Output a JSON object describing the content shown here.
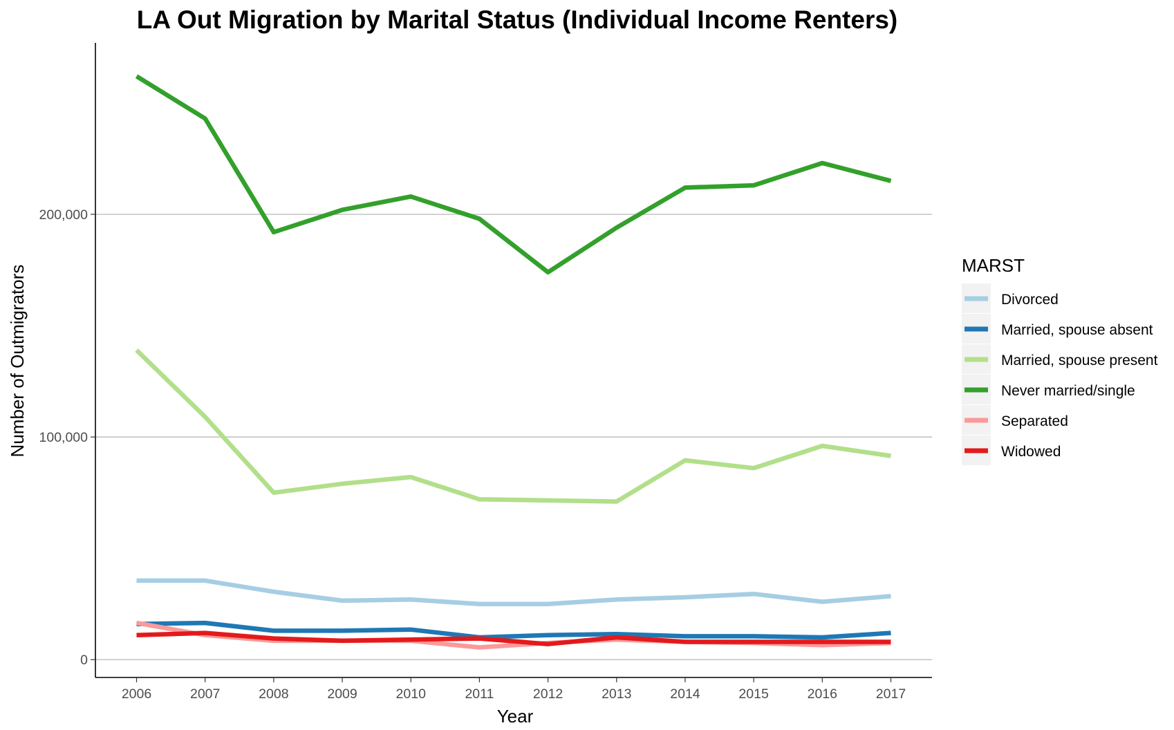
{
  "chart_data": {
    "type": "line",
    "title": "LA Out Migration by Marital Status (Individual Income Renters)",
    "xlabel": "Year",
    "ylabel": "Number of Outmigrators",
    "x": [
      2006,
      2007,
      2008,
      2009,
      2010,
      2011,
      2012,
      2013,
      2014,
      2015,
      2016,
      2017
    ],
    "x_tick_labels": [
      "2006",
      "2007",
      "2008",
      "2009",
      "2010",
      "2011",
      "2012",
      "2013",
      "2014",
      "2015",
      "2016",
      "2017"
    ],
    "ylim": [
      -8000,
      277000
    ],
    "y_ticks": [
      0,
      100000,
      200000
    ],
    "y_tick_labels": [
      "0",
      "100,000",
      "200,000"
    ],
    "grid": "horizontal major",
    "legend_title": "MARST",
    "legend_position": "right",
    "series": [
      {
        "name": "Divorced",
        "color": "#A6CEE3",
        "values": [
          35500,
          35500,
          30500,
          26500,
          27000,
          25000,
          25000,
          27000,
          28000,
          29500,
          26000,
          28500
        ]
      },
      {
        "name": "Married, spouse absent",
        "color": "#1F78B4",
        "values": [
          16000,
          16500,
          13000,
          13000,
          13500,
          10000,
          11000,
          11500,
          10500,
          10500,
          10000,
          12000
        ]
      },
      {
        "name": "Married, spouse present",
        "color": "#B2DF8A",
        "values": [
          139000,
          109000,
          75000,
          79000,
          82000,
          72000,
          71500,
          71000,
          89500,
          86000,
          96000,
          91500
        ]
      },
      {
        "name": "Never married/single",
        "color": "#33A02C",
        "values": [
          262000,
          243000,
          192000,
          202000,
          208000,
          198000,
          174000,
          194000,
          212000,
          213000,
          223000,
          215000
        ]
      },
      {
        "name": "Separated",
        "color": "#FB9A99",
        "values": [
          16500,
          11000,
          8500,
          8500,
          8500,
          5500,
          7500,
          9000,
          8000,
          7500,
          6500,
          7500
        ]
      },
      {
        "name": "Widowed",
        "color": "#E31A1C",
        "values": [
          11000,
          12000,
          9500,
          8500,
          9000,
          9500,
          7000,
          10000,
          8000,
          8000,
          8000,
          8000
        ]
      }
    ]
  }
}
